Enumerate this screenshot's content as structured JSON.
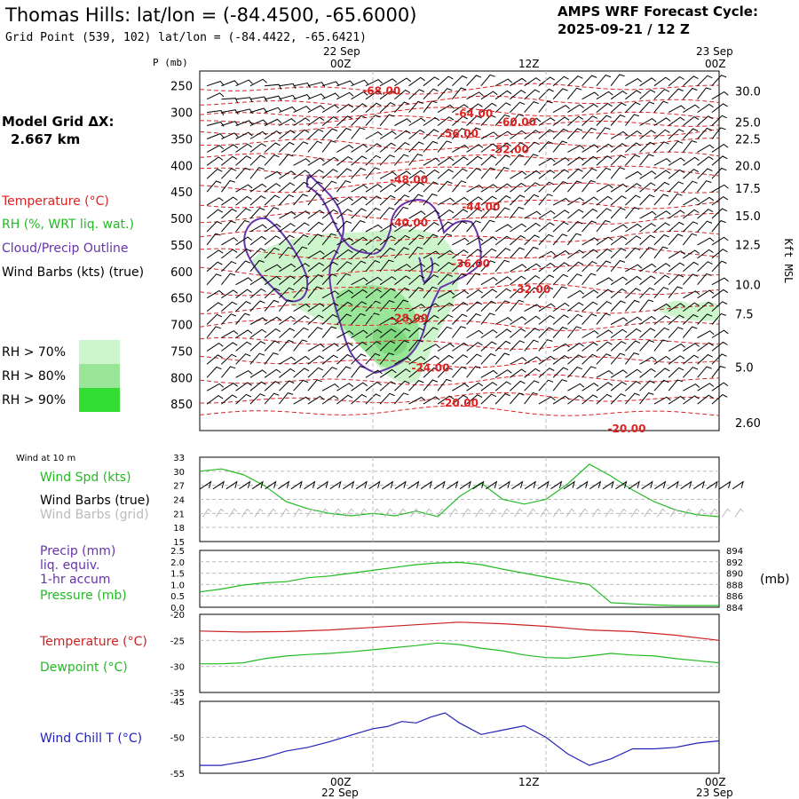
{
  "header": {
    "title": "Thomas Hills:  lat/lon = (-84.4500, -65.6000)",
    "subtitle": "Grid Point (539, 102) lat/lon = (-84.4422, -65.6421)",
    "cycle_line1": "AMPS WRF Forecast Cycle:",
    "cycle_line2": "2025-09-21 / 12  Z"
  },
  "left_panel": {
    "grid_label": "Model Grid ΔX:",
    "grid_value": "2.667 km",
    "legend_temperature": "Temperature (°C)",
    "legend_rh": "RH (%, WRT liq. wat.)",
    "legend_cloud": "Cloud/Precip Outline",
    "legend_wind": "Wind Barbs (kts) (true)",
    "rh_levels": [
      "RH > 70%",
      "RH > 80%",
      "RH > 90%"
    ],
    "colors": {
      "temperature": "#dd2222",
      "rh": "#22bb22",
      "cloud": "#6633aa",
      "wind": "#000000"
    },
    "rh_colors": [
      "#ccf5cc",
      "#99e699",
      "#33dd33"
    ]
  },
  "time_axis": {
    "top_dates": [
      "22 Sep",
      "23 Sep"
    ],
    "top_ticks": [
      "00Z",
      "12Z",
      "00Z"
    ],
    "bottom_ticks": [
      "00Z",
      "12Z",
      "00Z"
    ],
    "bottom_dates": [
      "22 Sep",
      "23 Sep"
    ]
  },
  "chart_data": [
    {
      "type": "line",
      "name": "sounding-cross-section",
      "ylabel": "P (mb)",
      "y2label": "Kft MSL",
      "x_range_hours": [
        -12,
        24
      ],
      "pressure_ticks": [
        250,
        300,
        350,
        400,
        450,
        500,
        550,
        600,
        650,
        700,
        750,
        800,
        850
      ],
      "kft_ticks": [
        "30.0",
        "25.0",
        "22.5",
        "20.0",
        "17.5",
        "15.0",
        "12.5",
        "10.0",
        "7.5",
        "5.0",
        "2.60"
      ],
      "kft_tick_pressures": [
        260,
        318,
        350,
        400,
        443,
        495,
        549,
        625,
        680,
        780,
        885
      ],
      "isotherm_labels": [
        {
          "text": "-68.00",
          "hour": 0.6,
          "p": 260
        },
        {
          "text": "-64.00",
          "hour": 7.0,
          "p": 302
        },
        {
          "text": "-60.00",
          "hour": 10.0,
          "p": 318
        },
        {
          "text": "-56.00",
          "hour": 6.0,
          "p": 340
        },
        {
          "text": "-52.00",
          "hour": 9.5,
          "p": 370
        },
        {
          "text": "-48.00",
          "hour": 2.5,
          "p": 427
        },
        {
          "text": "-44.00",
          "hour": 7.5,
          "p": 478
        },
        {
          "text": "-40.00",
          "hour": 2.5,
          "p": 508
        },
        {
          "text": "-36.00",
          "hour": 6.8,
          "p": 585
        },
        {
          "text": "-32.00",
          "hour": 11.0,
          "p": 634
        },
        {
          "text": "-28.00",
          "hour": 2.5,
          "p": 688
        },
        {
          "text": "-24.00",
          "hour": 4.0,
          "p": 782
        },
        {
          "text": "-20.00",
          "hour": 6.0,
          "p": 848
        },
        {
          "text": "-20.00",
          "hour": 17.6,
          "p": 897
        }
      ],
      "wind_barb_levels": [
        250,
        275,
        300,
        325,
        350,
        375,
        400,
        425,
        450,
        475,
        500,
        525,
        550,
        575,
        600,
        625,
        650,
        675,
        700,
        725,
        750,
        775,
        800,
        825,
        850
      ],
      "wind_barb_hours_step": 1
    },
    {
      "type": "line",
      "name": "wind-speed",
      "title": "Wind at 10 m",
      "series_labels": [
        "Wind Spd (kts)",
        "Wind Barbs (true)",
        "Wind Barbs (grid)"
      ],
      "ylim": [
        15,
        33
      ],
      "yticks": [
        33,
        30,
        27,
        24,
        21,
        18,
        15
      ],
      "series": [
        {
          "name": "Wind Spd (kts)",
          "color": "#22bb22",
          "x": [
            -12,
            -10.5,
            -9,
            -7.5,
            -6,
            -4.5,
            -3,
            -1.5,
            0,
            1.5,
            3,
            4.5,
            6,
            7.5,
            9,
            10.5,
            12,
            13.5,
            15,
            16.5,
            18,
            19.5,
            21,
            22.5,
            24
          ],
          "values": [
            30,
            30.5,
            29.3,
            26.9,
            23.5,
            22,
            21,
            20.5,
            21,
            20.5,
            21.5,
            20.3,
            24.6,
            27.5,
            24,
            23,
            24,
            27.3,
            31.5,
            29,
            26,
            23.5,
            21.7,
            20.7,
            20.3
          ]
        }
      ]
    },
    {
      "type": "line",
      "name": "precip-pressure",
      "series_labels": [
        "Precip (mm)",
        "liq. equiv.",
        "1-hr accum",
        "Pressure (mb)"
      ],
      "ylim": [
        0,
        2.5
      ],
      "yticks": [
        "2.5",
        "2.0",
        "1.5",
        "1.0",
        "0.5",
        "0.0"
      ],
      "y2lim": [
        884,
        894
      ],
      "y2ticks": [
        894,
        892,
        890,
        888,
        886,
        884
      ],
      "y2label": "(mb)",
      "series": [
        {
          "name": "Pressure (mb)",
          "color": "#22bb22",
          "axis": "right",
          "x": [
            -12,
            -10.5,
            -9,
            -7.5,
            -6,
            -4.5,
            -3,
            -1.5,
            0,
            1.5,
            3,
            4.5,
            6,
            7.5,
            9,
            10.5,
            12,
            13.5,
            15,
            16.5,
            18,
            19.5,
            21,
            22.5,
            24
          ],
          "values": [
            886.7,
            887.2,
            887.9,
            888.3,
            888.5,
            889.2,
            889.5,
            890.0,
            890.5,
            891.0,
            891.5,
            891.8,
            891.9,
            891.5,
            890.7,
            890.0,
            889.3,
            888.6,
            888.0,
            884.8,
            884.6,
            884.4,
            884.3,
            884.3,
            884.3
          ]
        }
      ]
    },
    {
      "type": "line",
      "name": "temperature-dewpoint",
      "ylim": [
        -35,
        -20
      ],
      "yticks": [
        -20,
        -25,
        -30,
        -35
      ],
      "series": [
        {
          "name": "Temperature (°C)",
          "color": "#cc2222",
          "x": [
            -12,
            -9,
            -6,
            -3,
            0,
            3,
            6,
            9,
            12,
            15,
            18,
            21,
            24
          ],
          "values": [
            -23.2,
            -23.4,
            -23.3,
            -23.0,
            -22.5,
            -22.0,
            -21.5,
            -21.8,
            -22.3,
            -23.0,
            -23.3,
            -24.0,
            -25.0
          ]
        },
        {
          "name": "Dewpoint (°C)",
          "color": "#22bb22",
          "x": [
            -12,
            -10.5,
            -9,
            -7.5,
            -6,
            -4.5,
            -3,
            -1.5,
            0,
            1.5,
            3,
            4.5,
            6,
            7.5,
            9,
            10.5,
            12,
            13.5,
            15,
            16.5,
            18,
            19.5,
            21,
            22.5,
            24
          ],
          "values": [
            -29.5,
            -29.5,
            -29.3,
            -28.5,
            -28.0,
            -27.7,
            -27.5,
            -27.2,
            -26.8,
            -26.4,
            -26.0,
            -25.5,
            -25.8,
            -26.5,
            -27.0,
            -27.8,
            -28.3,
            -28.4,
            -28.0,
            -27.5,
            -27.8,
            -28.0,
            -28.5,
            -28.9,
            -29.3
          ]
        }
      ]
    },
    {
      "type": "line",
      "name": "wind-chill",
      "ylim": [
        -55,
        -45
      ],
      "yticks": [
        -45,
        -50,
        -55
      ],
      "series": [
        {
          "name": "Wind Chill T (°C)",
          "color": "#2222bb",
          "x": [
            -12,
            -10.5,
            -9,
            -7.5,
            -6,
            -4.5,
            -3,
            -1.5,
            0,
            1,
            2,
            3,
            4,
            5,
            6,
            7.5,
            9,
            10.5,
            12,
            13.5,
            15,
            16.5,
            18,
            19.5,
            21,
            22.5,
            24
          ],
          "values": [
            -53.9,
            -53.9,
            -53.4,
            -52.8,
            -51.9,
            -51.4,
            -50.6,
            -49.7,
            -48.8,
            -48.5,
            -47.8,
            -48.0,
            -47.2,
            -46.6,
            -48.0,
            -49.6,
            -49.0,
            -48.4,
            -50.0,
            -52.3,
            -53.9,
            -53.0,
            -51.6,
            -51.6,
            -51.4,
            -50.8,
            -50.5
          ]
        }
      ]
    },
    {
      "type": "line",
      "name": "wind-chill-label",
      "series_labels": [
        "Temperature (°C)",
        "Dewpoint (°C)",
        "Wind Chill T (°C)"
      ]
    }
  ]
}
